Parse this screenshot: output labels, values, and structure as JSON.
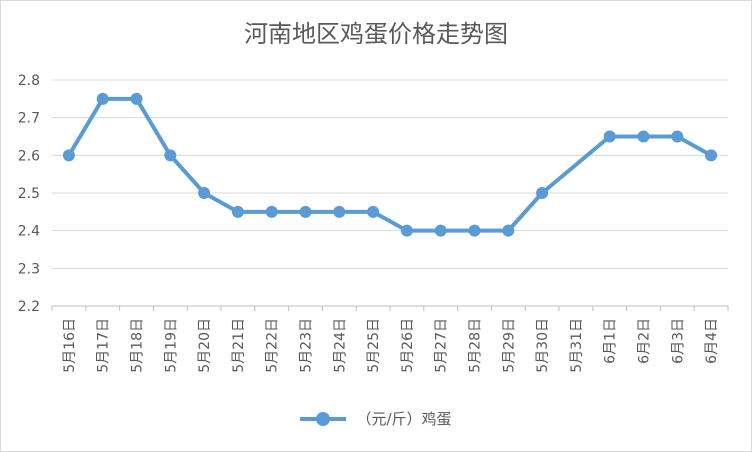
{
  "chart_data": {
    "type": "line",
    "title": "河南地区鸡蛋价格走势图",
    "xlabel": "",
    "ylabel": "",
    "ylim": [
      2.2,
      2.8
    ],
    "y_ticks": [
      "2.2",
      "2.3",
      "2.4",
      "2.5",
      "2.6",
      "2.7",
      "2.8"
    ],
    "grid": "horizontal",
    "legend_position": "bottom",
    "categories": [
      "5月16日",
      "5月17日",
      "5月18日",
      "5月19日",
      "5月20日",
      "5月21日",
      "5月22日",
      "5月23日",
      "5月24日",
      "5月25日",
      "5月26日",
      "5月27日",
      "5月28日",
      "5月29日",
      "5月30日",
      "5月31日",
      "6月1日",
      "6月2日",
      "6月3日",
      "6月4日"
    ],
    "series": [
      {
        "name": "（元/斤）鸡蛋",
        "color": "#5b9bd5",
        "values": [
          2.6,
          2.75,
          2.75,
          2.6,
          2.5,
          2.45,
          2.45,
          2.45,
          2.45,
          2.45,
          2.4,
          2.4,
          2.4,
          2.4,
          2.5,
          null,
          2.65,
          2.65,
          2.65,
          2.6
        ]
      }
    ]
  }
}
